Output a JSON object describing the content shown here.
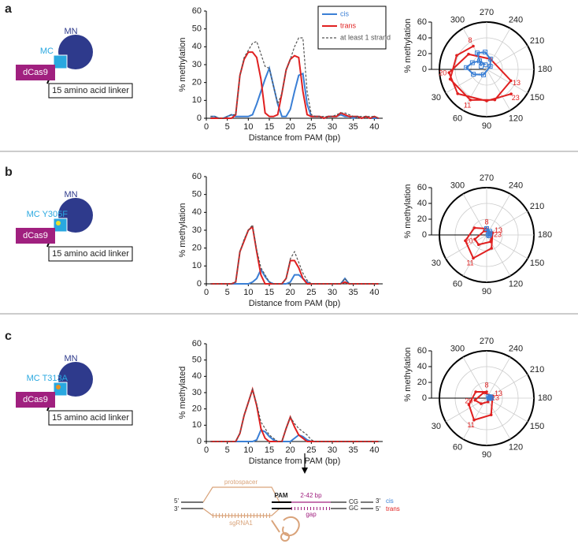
{
  "panels": [
    {
      "label": "a",
      "schematic": {
        "domain": "MN",
        "mutant": "MC",
        "fusion": "dCas9",
        "linker": "15 amino acid linker"
      }
    },
    {
      "label": "b",
      "schematic": {
        "domain": "MN",
        "mutant": "MC Y305F",
        "fusion": "dCas9",
        "linker": "15 amino acid linker",
        "mutant_dot_color": "#e8e030"
      }
    },
    {
      "label": "c",
      "schematic": {
        "domain": "MN",
        "mutant": "MC T313A",
        "fusion": "dCas9",
        "linker": "15 amino acid linker",
        "mutant_dot_color": "#e89020"
      }
    }
  ],
  "chart_data": [
    {
      "type": "line",
      "xlabel": "Distance from PAM (bp)",
      "ylabel": "% methylation",
      "legend": true,
      "xlim": [
        0,
        42
      ],
      "xticks": [
        0,
        5,
        10,
        15,
        20,
        25,
        30,
        35,
        40
      ],
      "ylim": [
        0,
        60
      ],
      "yticks": [
        0,
        10,
        20,
        30,
        40,
        50,
        60
      ],
      "x": [
        1,
        2,
        3,
        4,
        5,
        6,
        7,
        8,
        9,
        10,
        11,
        12,
        13,
        14,
        15,
        16,
        17,
        18,
        19,
        20,
        21,
        22,
        23,
        24,
        25,
        26,
        27,
        28,
        29,
        30,
        31,
        32,
        33,
        34,
        35,
        36,
        37,
        38,
        39,
        40,
        41
      ],
      "series": [
        {
          "name": "cis",
          "color": "#3a7fd5",
          "values": [
            1,
            1,
            0,
            0,
            1,
            2,
            1,
            1,
            1,
            1,
            2,
            8,
            15,
            22,
            28,
            18,
            8,
            1,
            1,
            5,
            15,
            24,
            25,
            8,
            1,
            1,
            1,
            0,
            1,
            1,
            1,
            2,
            1,
            1,
            0,
            1,
            0,
            1,
            0,
            0,
            0
          ]
        },
        {
          "name": "trans",
          "color": "#e02020",
          "values": [
            0,
            0,
            0,
            0,
            0,
            0,
            2,
            24,
            33,
            37,
            37,
            34,
            22,
            3,
            1,
            1,
            2,
            14,
            27,
            33,
            35,
            34,
            15,
            2,
            1,
            1,
            1,
            0,
            1,
            1,
            1,
            3,
            2,
            1,
            1,
            1,
            0,
            1,
            0,
            1,
            0
          ]
        },
        {
          "name": "at least 1 strand",
          "color": "#555555",
          "dash": true,
          "values": [
            1,
            1,
            0,
            0,
            1,
            2,
            2,
            24,
            34,
            38,
            42,
            43,
            36,
            29,
            28,
            18,
            8,
            14,
            27,
            33,
            40,
            45,
            45,
            15,
            2,
            1,
            1,
            1,
            1,
            1,
            2,
            3,
            3,
            2,
            1,
            1,
            1,
            1,
            1,
            1,
            0
          ]
        }
      ]
    },
    {
      "type": "polar",
      "ylabel": "% methylation",
      "rlim": [
        0,
        60
      ],
      "rticks": [
        0,
        20,
        40,
        60
      ],
      "angle_ticks": [
        270,
        240,
        210,
        180,
        150,
        120,
        90,
        60,
        30,
        300
      ],
      "series": [
        {
          "color": "#e02020",
          "marker": "circle",
          "theta": [
            300,
            335,
            15,
            62,
            105,
            155,
            250,
            320,
            5,
            40,
            90,
            135
          ],
          "r": [
            34,
            42,
            48,
            44,
            40,
            34,
            14,
            30,
            48,
            48,
            40,
            44
          ],
          "point_labels": [
            "8",
            null,
            null,
            "11",
            null,
            "13",
            null,
            null,
            "20",
            null,
            null,
            "23"
          ]
        },
        {
          "color": "#3a7fd5",
          "marker": "square",
          "theta": [
            285,
            310,
            335,
            355,
            20,
            60,
            220,
            250,
            275,
            300,
            330
          ],
          "r": [
            6,
            14,
            20,
            26,
            18,
            8,
            6,
            14,
            22,
            24,
            8
          ]
        }
      ]
    },
    {
      "type": "line",
      "xlabel": "Distance from PAM (bp)",
      "ylabel": "% methylation",
      "xlim": [
        0,
        42
      ],
      "xticks": [
        0,
        5,
        10,
        15,
        20,
        25,
        30,
        35,
        40
      ],
      "ylim": [
        0,
        60
      ],
      "yticks": [
        0,
        10,
        20,
        30,
        40,
        50,
        60
      ],
      "x": [
        1,
        2,
        3,
        4,
        5,
        6,
        7,
        8,
        9,
        10,
        11,
        12,
        13,
        14,
        15,
        16,
        17,
        18,
        19,
        20,
        21,
        22,
        23,
        24,
        25,
        26,
        27,
        28,
        29,
        30,
        31,
        32,
        33,
        34,
        35,
        36,
        37,
        38,
        39,
        40,
        41
      ],
      "series": [
        {
          "color": "#3a7fd5",
          "values": [
            0,
            0,
            0,
            0,
            0,
            0,
            0,
            0,
            0,
            0,
            1,
            3,
            8,
            4,
            1,
            0,
            0,
            0,
            0,
            1,
            5,
            5,
            3,
            1,
            0,
            0,
            0,
            0,
            0,
            0,
            0,
            0,
            3,
            0,
            0,
            0,
            0,
            0,
            0,
            0,
            0
          ]
        },
        {
          "color": "#e02020",
          "values": [
            0,
            0,
            0,
            0,
            0,
            0,
            1,
            18,
            24,
            30,
            32,
            18,
            5,
            0,
            0,
            0,
            0,
            0,
            3,
            13,
            13,
            9,
            3,
            0,
            0,
            0,
            0,
            0,
            0,
            0,
            0,
            0,
            1,
            0,
            0,
            0,
            0,
            0,
            0,
            0,
            0
          ]
        },
        {
          "color": "#555555",
          "dash": true,
          "values": [
            0,
            0,
            0,
            0,
            0,
            0,
            1,
            18,
            25,
            30,
            33,
            19,
            9,
            5,
            1,
            0,
            0,
            0,
            3,
            14,
            18,
            12,
            6,
            2,
            0,
            0,
            0,
            0,
            0,
            0,
            0,
            0,
            3,
            0,
            0,
            0,
            0,
            0,
            0,
            0,
            0
          ]
        }
      ]
    },
    {
      "type": "polar",
      "ylabel": "% methylation",
      "rlim": [
        0,
        60
      ],
      "rticks": [
        0,
        20,
        40,
        60
      ],
      "angle_ticks": [
        270,
        240,
        210,
        180,
        150,
        120,
        90,
        60,
        30,
        300
      ],
      "series": [
        {
          "color": "#e02020",
          "marker": "circle",
          "theta": [
            270,
            330,
            15,
            60,
            110,
            200,
            300,
            20,
            50,
            120,
            180
          ],
          "r": [
            8,
            18,
            28,
            34,
            18,
            8,
            6,
            16,
            16,
            10,
            6
          ],
          "point_labels": [
            "8",
            null,
            null,
            "11",
            null,
            "13",
            null,
            "20",
            null,
            null,
            "23"
          ]
        },
        {
          "color": "#3a7fd5",
          "marker": "square",
          "theta": [
            200,
            230,
            270,
            160,
            190,
            210
          ],
          "r": [
            2,
            6,
            8,
            3,
            4,
            5
          ]
        }
      ]
    },
    {
      "type": "line",
      "xlabel": "Distance from PAM (bp)",
      "ylabel": "% methylated",
      "xlim": [
        0,
        42
      ],
      "xticks": [
        0,
        5,
        10,
        15,
        20,
        25,
        30,
        35,
        40
      ],
      "ylim": [
        0,
        60
      ],
      "yticks": [
        0,
        10,
        20,
        30,
        40,
        50,
        60
      ],
      "x": [
        1,
        2,
        3,
        4,
        5,
        6,
        7,
        8,
        9,
        10,
        11,
        12,
        13,
        14,
        15,
        16,
        17,
        18,
        19,
        20,
        21,
        22,
        23,
        24,
        25,
        26,
        27,
        28,
        29,
        30,
        31,
        32,
        33,
        34,
        35,
        36,
        37,
        38,
        39,
        40,
        41
      ],
      "series": [
        {
          "color": "#3a7fd5",
          "values": [
            0,
            0,
            0,
            0,
            0,
            0,
            0,
            0,
            0,
            0,
            0,
            1,
            7,
            6,
            3,
            1,
            0,
            0,
            0,
            0,
            2,
            4,
            3,
            1,
            0,
            0,
            0,
            0,
            0,
            0,
            0,
            0,
            0,
            0,
            0,
            0,
            0,
            0,
            0,
            0,
            0
          ]
        },
        {
          "color": "#e02020",
          "values": [
            0,
            0,
            0,
            0,
            0,
            0,
            0,
            5,
            16,
            24,
            32,
            22,
            8,
            2,
            0,
            0,
            0,
            0,
            8,
            15,
            9,
            4,
            2,
            0,
            0,
            0,
            0,
            0,
            0,
            0,
            0,
            0,
            0,
            0,
            0,
            0,
            0,
            0,
            0,
            0,
            0
          ]
        },
        {
          "color": "#555555",
          "dash": true,
          "values": [
            0,
            0,
            0,
            0,
            0,
            0,
            0,
            5,
            16,
            24,
            32,
            23,
            12,
            8,
            4,
            2,
            0,
            0,
            8,
            15,
            11,
            8,
            6,
            4,
            1,
            0,
            0,
            0,
            0,
            0,
            0,
            0,
            0,
            0,
            0,
            0,
            0,
            0,
            0,
            0,
            0
          ]
        }
      ]
    },
    {
      "type": "polar",
      "ylabel": "% methylation",
      "rlim": [
        0,
        60
      ],
      "rticks": [
        0,
        20,
        40,
        60
      ],
      "angle_ticks": [
        270,
        240,
        210,
        180,
        150,
        120,
        90,
        60,
        30,
        300
      ],
      "series": [
        {
          "color": "#e02020",
          "marker": "circle",
          "theta": [
            270,
            330,
            20,
            60,
            105,
            200,
            300,
            10,
            45,
            110,
            180
          ],
          "r": [
            8,
            16,
            24,
            32,
            22,
            8,
            8,
            15,
            10,
            5,
            3
          ],
          "point_labels": [
            "8",
            null,
            null,
            "11",
            null,
            "13",
            null,
            "20",
            null,
            null,
            "23"
          ]
        },
        {
          "color": "#3a7fd5",
          "marker": "square",
          "theta": [
            180,
            200,
            220,
            170,
            190
          ],
          "r": [
            6,
            5,
            3,
            3,
            4
          ]
        }
      ]
    }
  ],
  "diagram": {
    "protospacer": "protospacer",
    "pam": "PAM",
    "gap_size": "2-42 bp",
    "gap": "gap",
    "guide": "sgRNA1",
    "cg": "CG",
    "gc": "GC",
    "top_left_end": "5'",
    "bottom_left_end": "3'",
    "top_right_end": "3'",
    "bottom_right_end": "5'",
    "cis": "cis",
    "trans": "trans"
  }
}
